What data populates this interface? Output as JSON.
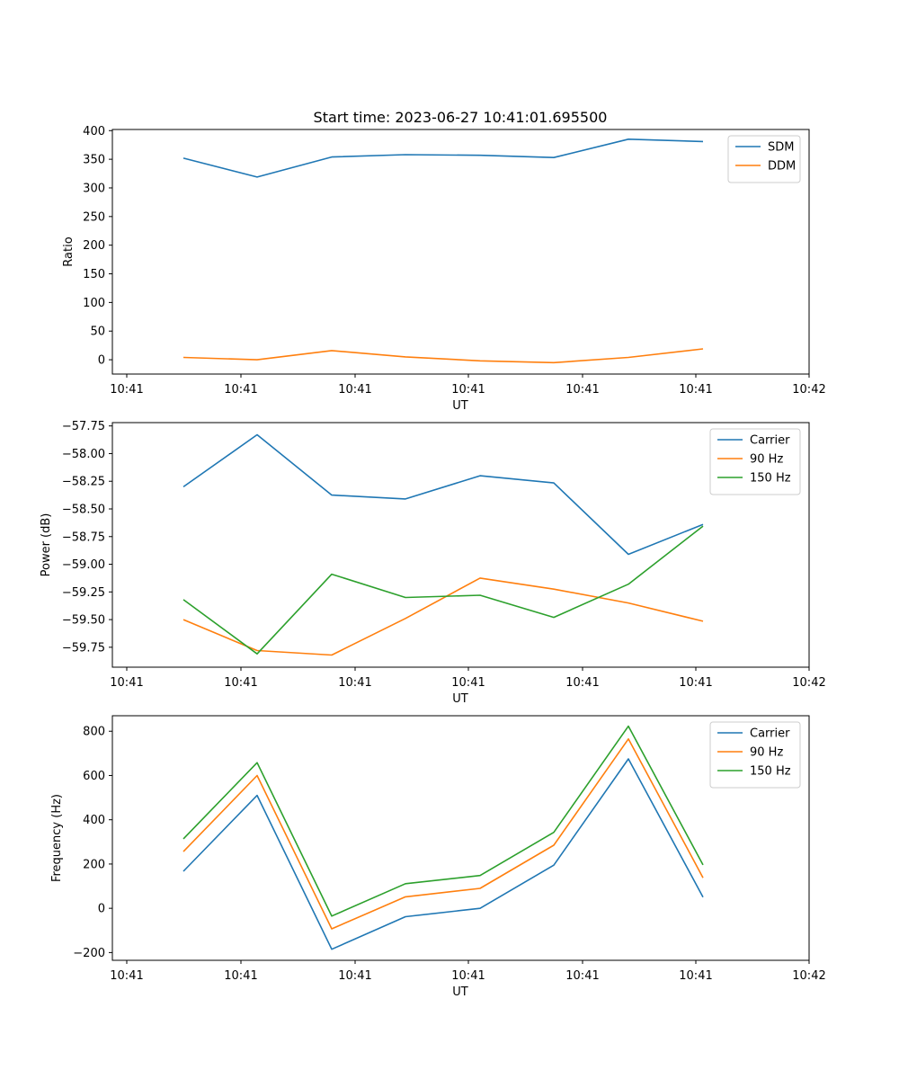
{
  "figure": {
    "title": "Start time: 2023-06-27 10:41:01.695500"
  },
  "chart_data": [
    {
      "type": "line",
      "xlabel": "UT",
      "ylabel": "Ratio",
      "xticks": [
        "10:41",
        "10:41",
        "10:41",
        "10:41",
        "10:41",
        "10:41",
        "10:41"
      ],
      "xlim_tick_last": "10:42",
      "ylim": [
        -25,
        402
      ],
      "yticks": [
        0,
        50,
        100,
        150,
        200,
        250,
        300,
        350,
        400
      ],
      "legend": "top-right",
      "grid": false,
      "series": [
        {
          "name": "SDM",
          "color": "#1f77b4",
          "values": [
            352,
            319,
            354,
            358,
            357,
            353,
            385,
            381
          ]
        },
        {
          "name": "DDM",
          "color": "#ff7f0e",
          "values": [
            4,
            0,
            16,
            5,
            -2,
            -5,
            4,
            19
          ]
        }
      ]
    },
    {
      "type": "line",
      "xlabel": "UT",
      "ylabel": "Power (dB)",
      "xticks": [
        "10:41",
        "10:41",
        "10:41",
        "10:41",
        "10:41",
        "10:41",
        "10:41"
      ],
      "xlim_tick_last": "10:42",
      "ylim": [
        -59.93,
        -57.72
      ],
      "yticks": [
        -59.75,
        -59.5,
        -59.25,
        -59.0,
        -58.75,
        -58.5,
        -58.25,
        -58.0,
        -57.75
      ],
      "ytick_labels": [
        "−59.75",
        "−59.50",
        "−59.25",
        "−59.00",
        "−58.75",
        "−58.50",
        "−58.25",
        "−58.00",
        "−57.75"
      ],
      "legend": "top-right",
      "grid": false,
      "series": [
        {
          "name": "Carrier",
          "color": "#1f77b4",
          "values": [
            -58.3,
            -57.83,
            -58.375,
            -58.41,
            -58.2,
            -58.265,
            -58.91,
            -58.64
          ]
        },
        {
          "name": "90 Hz",
          "color": "#ff7f0e",
          "values": [
            -59.5,
            -59.78,
            -59.82,
            -59.49,
            -59.125,
            -59.225,
            -59.35,
            -59.515
          ]
        },
        {
          "name": "150 Hz",
          "color": "#2ca02c",
          "values": [
            -59.32,
            -59.81,
            -59.09,
            -59.3,
            -59.28,
            -59.48,
            -59.18,
            -58.655
          ]
        }
      ]
    },
    {
      "type": "line",
      "xlabel": "UT",
      "ylabel": "Frequency (Hz)",
      "xticks": [
        "10:41",
        "10:41",
        "10:41",
        "10:41",
        "10:41",
        "10:41",
        "10:41"
      ],
      "xlim_tick_last": "10:42",
      "ylim": [
        -235,
        870
      ],
      "yticks": [
        -200,
        0,
        200,
        400,
        600,
        800
      ],
      "ytick_labels": [
        "−200",
        "0",
        "200",
        "400",
        "600",
        "800"
      ],
      "legend": "top-right",
      "grid": false,
      "series": [
        {
          "name": "Carrier",
          "color": "#1f77b4",
          "values": [
            167,
            510,
            -185,
            -38,
            0,
            195,
            675,
            50
          ]
        },
        {
          "name": "90 Hz",
          "color": "#ff7f0e",
          "values": [
            256,
            600,
            -93,
            52,
            90,
            285,
            765,
            138
          ]
        },
        {
          "name": "150 Hz",
          "color": "#2ca02c",
          "values": [
            314,
            658,
            -35,
            111,
            148,
            343,
            823,
            196
          ]
        }
      ]
    }
  ]
}
